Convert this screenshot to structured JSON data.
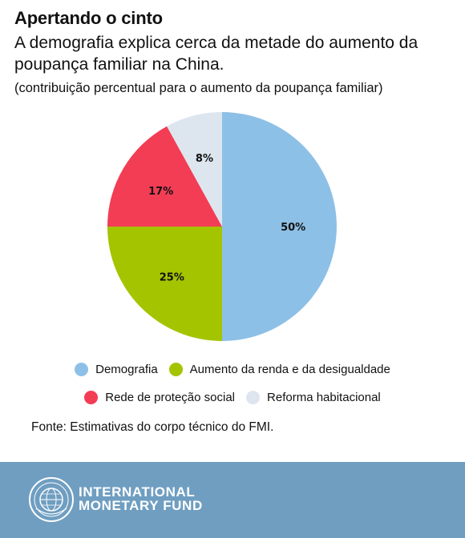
{
  "header": {
    "title": "Apertando o cinto",
    "subtitle": "A demografia explica cerca da metade do aumento da poupança familiar na China.",
    "note": "(contribuição percentual para o aumento da poupança familiar)"
  },
  "chart_data": {
    "type": "pie",
    "title": "Apertando o cinto",
    "start_position": "top",
    "direction": "clockwise",
    "slices": [
      {
        "name": "Demografia",
        "value": 50,
        "label": "50%",
        "color": "#8dc0e6"
      },
      {
        "name": "Aumento da renda e da desigualdade",
        "value": 25,
        "label": "25%",
        "color": "#a5c400"
      },
      {
        "name": "Rede de proteção social",
        "value": 17,
        "label": "17%",
        "color": "#f23d55"
      },
      {
        "name": "Reforma habitacional",
        "value": 8,
        "label": "8%",
        "color": "#dde6ee"
      }
    ],
    "legend_placement": "bottom"
  },
  "source": "Fonte: Estimativas do corpo técnico do FMI.",
  "footer": {
    "org_line1": "INTERNATIONAL",
    "org_line2": "MONETARY FUND",
    "background": "#6f9ec1",
    "logo_icon": "imf-seal-icon"
  }
}
